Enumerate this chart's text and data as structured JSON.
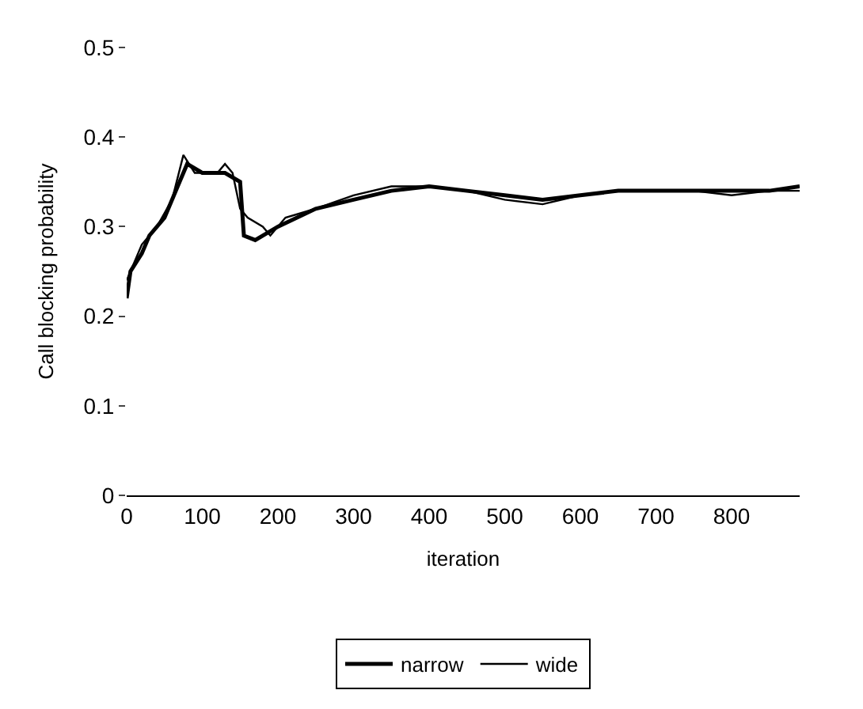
{
  "chart_data": {
    "type": "line",
    "xlabel": "iteration",
    "ylabel": "Call blocking probability",
    "xlim": [
      0,
      890
    ],
    "xticks": [
      0,
      100,
      200,
      300,
      400,
      500,
      600,
      700,
      800
    ],
    "ylim": [
      0,
      0.5
    ],
    "yticks": [
      0,
      0.1,
      0.2,
      0.3,
      0.4,
      0.5
    ],
    "legend": "bottom",
    "marker": "none",
    "line_style": "solid",
    "series": [
      {
        "name": "narrow",
        "color": "#000000",
        "x": [
          0,
          5,
          20,
          30,
          50,
          70,
          80,
          100,
          130,
          150,
          155,
          170,
          200,
          250,
          300,
          350,
          400,
          450,
          500,
          550,
          600,
          650,
          700,
          750,
          800,
          850,
          890
        ],
        "values": [
          0.22,
          0.25,
          0.27,
          0.29,
          0.31,
          0.35,
          0.37,
          0.36,
          0.36,
          0.35,
          0.29,
          0.285,
          0.3,
          0.32,
          0.33,
          0.34,
          0.345,
          0.34,
          0.335,
          0.33,
          0.335,
          0.34,
          0.34,
          0.34,
          0.34,
          0.34,
          0.345
        ]
      },
      {
        "name": "wide",
        "color": "#000000",
        "x": [
          0,
          20,
          40,
          60,
          75,
          90,
          120,
          130,
          140,
          150,
          160,
          180,
          190,
          210,
          250,
          300,
          350,
          400,
          450,
          500,
          550,
          600,
          650,
          700,
          750,
          800,
          850,
          890
        ],
        "values": [
          0.24,
          0.28,
          0.3,
          0.33,
          0.38,
          0.36,
          0.36,
          0.37,
          0.36,
          0.32,
          0.31,
          0.3,
          0.29,
          0.31,
          0.32,
          0.335,
          0.345,
          0.345,
          0.34,
          0.33,
          0.325,
          0.335,
          0.34,
          0.34,
          0.34,
          0.335,
          0.34,
          0.34
        ]
      }
    ]
  }
}
